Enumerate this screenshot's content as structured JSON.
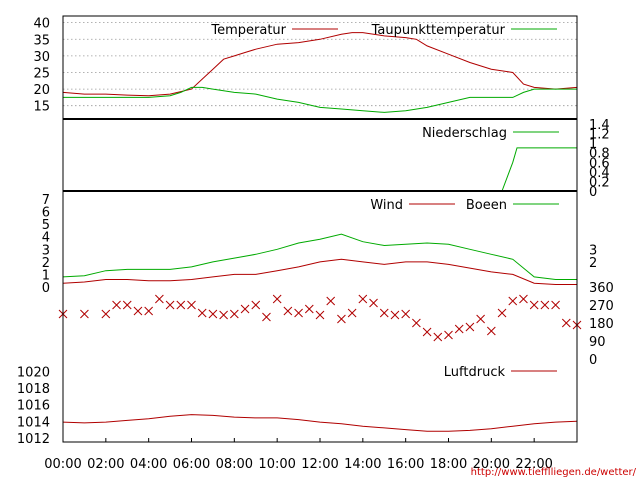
{
  "chart_data": {
    "type": "line",
    "source_url": "http://www.tiefflliegen.de/wetter/",
    "x_axis": {
      "unit": "hour",
      "range": [
        0,
        24
      ],
      "ticks": [
        0,
        2,
        4,
        6,
        8,
        10,
        12,
        14,
        16,
        18,
        20,
        22
      ],
      "tick_labels": [
        "00:00",
        "02:00",
        "04:00",
        "06:00",
        "08:00",
        "10:00",
        "12:00",
        "14:00",
        "16:00",
        "18:00",
        "20:00",
        "22:00"
      ]
    },
    "panels": [
      {
        "id": "temperature",
        "ylim": [
          11,
          42
        ],
        "yticks": [
          15,
          20,
          25,
          30,
          35,
          40
        ],
        "grid": true,
        "legend_position": "top",
        "series": [
          {
            "name": "Temperatur",
            "color": "#b00000",
            "x": [
              0,
              1,
              2,
              3,
              4,
              5,
              6,
              6.5,
              7,
              7.5,
              8,
              8.5,
              9,
              10,
              11,
              12,
              13,
              13.5,
              14,
              15,
              16,
              16.5,
              17,
              18,
              19,
              20,
              21,
              21.5,
              22,
              23,
              24
            ],
            "y": [
              19,
              18.5,
              18.5,
              18.2,
              18,
              18.5,
              20,
              23,
              26,
              29,
              30,
              31,
              32,
              33.5,
              34,
              35,
              36.5,
              37,
              37,
              36,
              35.5,
              35,
              33,
              30.5,
              28,
              26,
              25,
              21.5,
              20.5,
              20,
              20.5
            ]
          },
          {
            "name": "Taupunkttemperatur",
            "color": "#00aa00",
            "x": [
              0,
              1,
              2,
              3,
              4,
              5,
              5.5,
              6,
              6.5,
              7,
              8,
              9,
              10,
              11,
              12,
              13,
              14,
              15,
              16,
              17,
              18,
              19,
              20,
              21,
              21.5,
              22,
              23,
              24
            ],
            "y": [
              17.5,
              17.5,
              17.5,
              17.5,
              17.5,
              18,
              19,
              20.5,
              20.5,
              20,
              19,
              18.5,
              17,
              16,
              14.5,
              14,
              13.5,
              13,
              13.5,
              14.5,
              16,
              17.5,
              17.5,
              17.5,
              19,
              20,
              20,
              20
            ]
          }
        ]
      },
      {
        "id": "precipitation",
        "ylim": [
          0,
          1.4
        ],
        "yticks_right": [
          0,
          0.2,
          0.4,
          0.6,
          0.8,
          1,
          1.2,
          1.4
        ],
        "series": [
          {
            "name": "Niederschlag",
            "color": "#00aa00",
            "x": [
              0,
              20.5,
              21.0,
              21.2,
              21.5,
              24
            ],
            "y": [
              0,
              0,
              0.6,
              0.9,
              0.9,
              0.9
            ]
          }
        ]
      },
      {
        "id": "wind",
        "ylim": [
          0,
          7
        ],
        "yticks": [
          0,
          1,
          2,
          3,
          4,
          5,
          6,
          7
        ],
        "yticks_right": [
          2,
          3
        ],
        "series": [
          {
            "name": "Wind",
            "color": "#b00000",
            "x": [
              0,
              1,
              2,
              3,
              4,
              5,
              6,
              7,
              8,
              9,
              10,
              11,
              12,
              13,
              14,
              15,
              16,
              17,
              18,
              19,
              20,
              21,
              22,
              23,
              24
            ],
            "y": [
              0.3,
              0.4,
              0.6,
              0.6,
              0.5,
              0.5,
              0.6,
              0.8,
              1.0,
              1.0,
              1.3,
              1.6,
              2.0,
              2.2,
              2.0,
              1.8,
              2.0,
              2.0,
              1.8,
              1.5,
              1.2,
              1.0,
              0.3,
              0.2,
              0.2
            ]
          },
          {
            "name": "Boeen",
            "color": "#00aa00",
            "x": [
              0,
              1,
              2,
              3,
              4,
              5,
              6,
              7,
              8,
              9,
              10,
              11,
              12,
              13,
              14,
              15,
              16,
              17,
              18,
              19,
              20,
              21,
              22,
              23,
              24
            ],
            "y": [
              0.8,
              0.9,
              1.3,
              1.4,
              1.4,
              1.4,
              1.6,
              2.0,
              2.3,
              2.6,
              3.0,
              3.5,
              3.8,
              4.2,
              3.6,
              3.3,
              3.4,
              3.5,
              3.4,
              3.0,
              2.6,
              2.2,
              0.8,
              0.6,
              0.6
            ]
          }
        ]
      },
      {
        "id": "wind_direction",
        "ylim": [
          0,
          360
        ],
        "yticks_right": [
          0,
          90,
          180,
          270,
          360
        ],
        "series": [
          {
            "name": "",
            "color": "#b00000",
            "marker": "x",
            "x": [
              0,
              1,
              2,
              2.5,
              3,
              3.5,
              4,
              4.5,
              5,
              5.5,
              6,
              6.5,
              7,
              7.5,
              8,
              8.5,
              9,
              9.5,
              10,
              10.5,
              11,
              11.5,
              12,
              12.5,
              13,
              13.5,
              14,
              14.5,
              15,
              15.5,
              16,
              16.5,
              17,
              17.5,
              18,
              18.5,
              19,
              19.5,
              20,
              20.5,
              21,
              21.5,
              22,
              22.5,
              23,
              23.5,
              24
            ],
            "y": [
              225,
              225,
              225,
              270,
              270,
              240,
              240,
              300,
              270,
              270,
              270,
              230,
              225,
              220,
              225,
              250,
              270,
              210,
              300,
              240,
              230,
              250,
              220,
              290,
              200,
              230,
              300,
              280,
              230,
              220,
              225,
              180,
              135,
              110,
              120,
              150,
              160,
              200,
              140,
              230,
              290,
              300,
              270,
              270,
              270,
              180,
              170
            ]
          }
        ]
      },
      {
        "id": "pressure",
        "ylim": [
          1011.5,
          1021.5
        ],
        "yticks": [
          1012,
          1014,
          1016,
          1018,
          1020
        ],
        "legend_position": "top-right",
        "series": [
          {
            "name": "Luftdruck",
            "color": "#b00000",
            "x": [
              0,
              1,
              2,
              3,
              4,
              5,
              6,
              7,
              8,
              9,
              10,
              11,
              12,
              13,
              14,
              15,
              16,
              17,
              18,
              19,
              20,
              21,
              22,
              23,
              24
            ],
            "y": [
              1013.9,
              1013.8,
              1013.9,
              1014.1,
              1014.3,
              1014.6,
              1014.8,
              1014.7,
              1014.5,
              1014.4,
              1014.4,
              1014.2,
              1013.9,
              1013.7,
              1013.4,
              1013.2,
              1013.0,
              1012.8,
              1012.8,
              1012.9,
              1013.1,
              1013.4,
              1013.7,
              1013.9,
              1014.0
            ]
          }
        ]
      }
    ]
  }
}
